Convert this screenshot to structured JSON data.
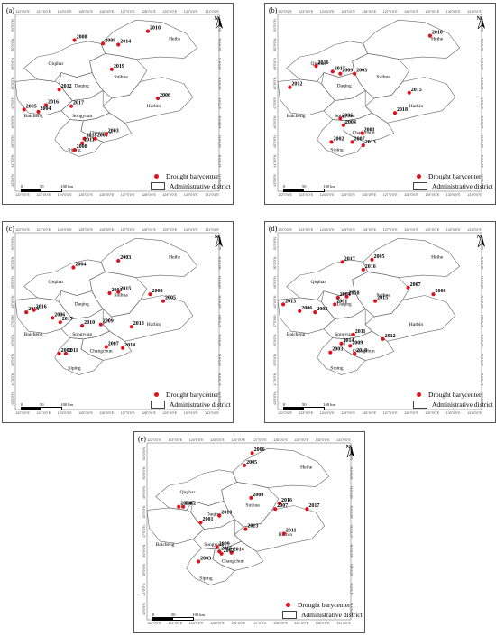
{
  "legend": {
    "barycenter_label": "Drought barycenter",
    "district_label": "Administrative district"
  },
  "scale_labels": [
    "0",
    "50",
    "100 km"
  ],
  "north_label": "N",
  "lon_labels": [
    "122°0'0\"E",
    "123°0'0\"E",
    "124°0'0\"E",
    "125°0'0\"E",
    "126°0'0\"E",
    "127°0'0\"E",
    "128°0'0\"E",
    "129°0'0\"E",
    "130°0'0\"E",
    "131°0'0\"E"
  ],
  "lat_labels": [
    "51°0'0\"N",
    "50°0'0\"N",
    "49°0'0\"N",
    "48°0'0\"N",
    "47°0'0\"N",
    "46°0'0\"N",
    "45°0'0\"N",
    "44°0'0\"N",
    "43°0'0\"N"
  ],
  "cities": [
    "Heihe",
    "Qiqihar",
    "Suihua",
    "Daqing",
    "Harbin",
    "Baicheng",
    "Songyuan",
    "Changchun",
    "Siping"
  ],
  "marker_color": "#e0101c",
  "panels": [
    {
      "label": "(a)",
      "points": [
        {
          "year": "2010",
          "lon": 127.95,
          "lat": 50.55
        },
        {
          "year": "2008",
          "lon": 124.6,
          "lat": 50.15
        },
        {
          "year": "2009",
          "lon": 125.9,
          "lat": 50.0
        },
        {
          "year": "2014",
          "lon": 126.6,
          "lat": 49.95
        },
        {
          "year": "2019",
          "lon": 126.3,
          "lat": 48.85
        },
        {
          "year": "2012",
          "lon": 123.9,
          "lat": 47.95
        },
        {
          "year": "2006",
          "lon": 128.4,
          "lat": 47.55
        },
        {
          "year": "2016",
          "lon": 123.3,
          "lat": 47.25
        },
        {
          "year": "2005",
          "lon": 122.3,
          "lat": 47.05
        },
        {
          "year": "2004",
          "lon": 122.95,
          "lat": 46.95
        },
        {
          "year": "2017",
          "lon": 124.45,
          "lat": 47.2
        },
        {
          "year": "2018",
          "lon": 125.05,
          "lat": 45.75
        },
        {
          "year": "2001",
          "lon": 125.55,
          "lat": 45.75
        },
        {
          "year": "2003",
          "lon": 126.05,
          "lat": 45.95
        },
        {
          "year": "2011",
          "lon": 124.95,
          "lat": 45.55
        },
        {
          "year": "2000",
          "lon": 124.6,
          "lat": 45.25
        }
      ]
    },
    {
      "label": "(b)",
      "points": [
        {
          "year": "2010",
          "lon": 128.85,
          "lat": 50.35
        },
        {
          "year": "2016",
          "lon": 123.65,
          "lat": 49.0
        },
        {
          "year": "2017",
          "lon": 124.4,
          "lat": 48.75
        },
        {
          "year": "2009",
          "lon": 124.75,
          "lat": 48.65
        },
        {
          "year": "2003",
          "lon": 125.4,
          "lat": 48.65
        },
        {
          "year": "2012",
          "lon": 122.45,
          "lat": 48.05
        },
        {
          "year": "2015",
          "lon": 127.9,
          "lat": 47.8
        },
        {
          "year": "2018",
          "lon": 127.25,
          "lat": 46.9
        },
        {
          "year": "2006",
          "lon": 124.75,
          "lat": 46.65
        },
        {
          "year": "2004",
          "lon": 124.9,
          "lat": 46.35
        },
        {
          "year": "2001",
          "lon": 125.75,
          "lat": 46.0
        },
        {
          "year": "2002",
          "lon": 124.35,
          "lat": 45.6
        },
        {
          "year": "2007",
          "lon": 125.3,
          "lat": 45.6
        },
        {
          "year": "2013",
          "lon": 125.8,
          "lat": 45.45
        }
      ]
    },
    {
      "label": "(c)",
      "points": [
        {
          "year": "2003",
          "lon": 126.6,
          "lat": 50.05
        },
        {
          "year": "2004",
          "lon": 124.55,
          "lat": 49.75
        },
        {
          "year": "2001",
          "lon": 126.2,
          "lat": 48.6
        },
        {
          "year": "2015",
          "lon": 126.6,
          "lat": 48.65
        },
        {
          "year": "2008",
          "lon": 128.05,
          "lat": 48.55
        },
        {
          "year": "2005",
          "lon": 128.65,
          "lat": 48.25
        },
        {
          "year": "2013",
          "lon": 122.4,
          "lat": 47.75
        },
        {
          "year": "2016",
          "lon": 122.75,
          "lat": 47.85
        },
        {
          "year": "2006",
          "lon": 123.6,
          "lat": 47.5
        },
        {
          "year": "2017",
          "lon": 123.95,
          "lat": 47.3
        },
        {
          "year": "2010",
          "lon": 124.95,
          "lat": 47.15
        },
        {
          "year": "2009",
          "lon": 125.8,
          "lat": 47.2
        },
        {
          "year": "2018",
          "lon": 127.2,
          "lat": 47.1
        },
        {
          "year": "2007",
          "lon": 126.05,
          "lat": 46.2
        },
        {
          "year": "2014",
          "lon": 126.8,
          "lat": 46.15
        },
        {
          "year": "2002",
          "lon": 123.9,
          "lat": 45.9
        },
        {
          "year": "2011",
          "lon": 124.2,
          "lat": 45.9
        }
      ]
    },
    {
      "label": "(d)",
      "points": [
        {
          "year": "2005",
          "lon": 126.2,
          "lat": 50.1
        },
        {
          "year": "2017",
          "lon": 124.85,
          "lat": 50.0
        },
        {
          "year": "2016",
          "lon": 125.8,
          "lat": 49.65
        },
        {
          "year": "2007",
          "lon": 127.85,
          "lat": 48.85
        },
        {
          "year": "2008",
          "lon": 129.0,
          "lat": 48.55
        },
        {
          "year": "2004",
          "lon": 124.65,
          "lat": 48.4
        },
        {
          "year": "2010",
          "lon": 125.05,
          "lat": 48.45
        },
        {
          "year": "2001",
          "lon": 124.5,
          "lat": 48.1
        },
        {
          "year": "2015",
          "lon": 126.35,
          "lat": 48.25
        },
        {
          "year": "2013",
          "lon": 122.15,
          "lat": 48.1
        },
        {
          "year": "2006",
          "lon": 122.9,
          "lat": 47.8
        },
        {
          "year": "2002",
          "lon": 123.6,
          "lat": 47.75
        },
        {
          "year": "2011",
          "lon": 125.35,
          "lat": 46.75
        },
        {
          "year": "2012",
          "lon": 126.7,
          "lat": 46.55
        },
        {
          "year": "2014",
          "lon": 124.8,
          "lat": 46.35
        },
        {
          "year": "2009",
          "lon": 125.2,
          "lat": 46.25
        },
        {
          "year": "2003",
          "lon": 124.3,
          "lat": 45.95
        },
        {
          "year": "2018",
          "lon": 125.4,
          "lat": 45.9
        }
      ]
    },
    {
      "label": "(e)",
      "points": [
        {
          "year": "2006",
          "lon": 126.7,
          "lat": 50.85
        },
        {
          "year": "2005",
          "lon": 126.35,
          "lat": 50.3
        },
        {
          "year": "2008",
          "lon": 126.65,
          "lat": 48.85
        },
        {
          "year": "2016",
          "lon": 127.95,
          "lat": 48.6
        },
        {
          "year": "2007",
          "lon": 127.75,
          "lat": 48.35
        },
        {
          "year": "2017",
          "lon": 129.2,
          "lat": 48.35
        },
        {
          "year": "2004",
          "lon": 123.35,
          "lat": 48.45
        },
        {
          "year": "2012",
          "lon": 123.55,
          "lat": 48.45
        },
        {
          "year": "2010",
          "lon": 125.2,
          "lat": 48.05
        },
        {
          "year": "2001",
          "lon": 124.35,
          "lat": 47.75
        },
        {
          "year": "2013",
          "lon": 126.4,
          "lat": 47.45
        },
        {
          "year": "2011",
          "lon": 128.15,
          "lat": 47.25
        },
        {
          "year": "2009",
          "lon": 125.1,
          "lat": 46.65
        },
        {
          "year": "2015",
          "lon": 125.2,
          "lat": 46.45
        },
        {
          "year": "2014",
          "lon": 125.75,
          "lat": 46.4
        },
        {
          "year": "2002",
          "lon": 125.3,
          "lat": 46.35
        },
        {
          "year": "2003",
          "lon": 124.25,
          "lat": 46.0
        }
      ]
    }
  ]
}
